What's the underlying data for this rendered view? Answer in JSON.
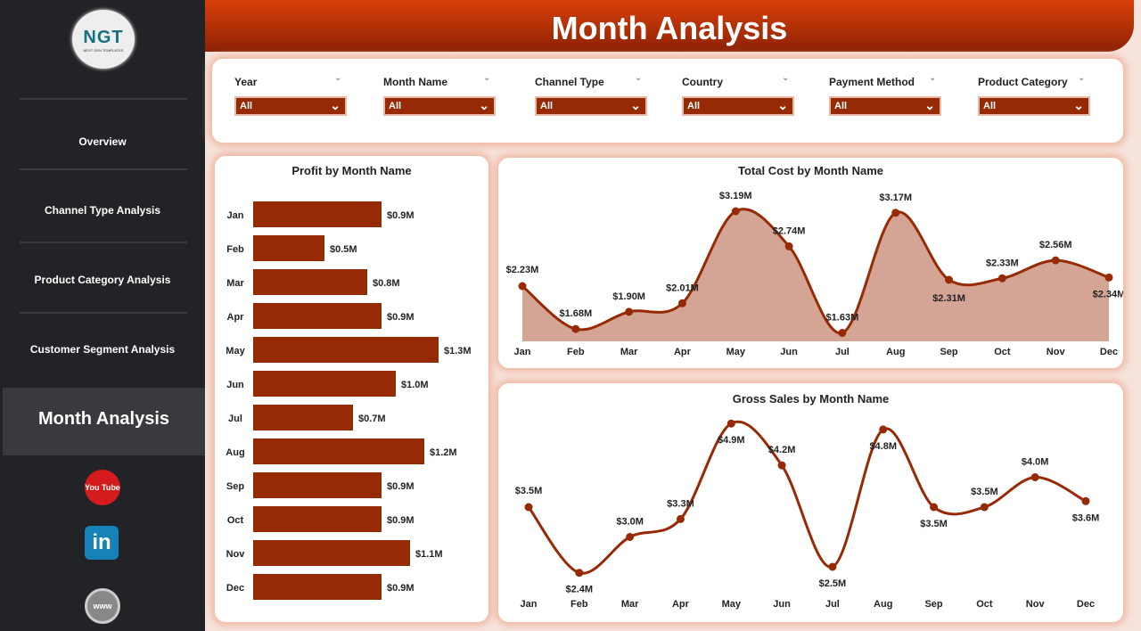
{
  "sidebar": {
    "logo": {
      "text": "NGT",
      "tagline": "NEXT GEN TEMPLATES"
    },
    "items": [
      {
        "label": "Overview"
      },
      {
        "label": "Channel Type Analysis"
      },
      {
        "label": "Product Category Analysis"
      },
      {
        "label": "Customer Segment Analysis"
      }
    ],
    "active": "Month Analysis",
    "social": [
      {
        "icon": "youtube-icon",
        "label": "You Tube"
      },
      {
        "icon": "linkedin-icon",
        "label": "in"
      },
      {
        "icon": "globe-icon",
        "label": "www"
      }
    ]
  },
  "header": {
    "title": "Month Analysis"
  },
  "filters": [
    {
      "label": "Year",
      "value": "All"
    },
    {
      "label": "Month Name",
      "value": "All"
    },
    {
      "label": "Channel Type",
      "value": "All"
    },
    {
      "label": "Country",
      "value": "All"
    },
    {
      "label": "Payment Method",
      "value": "All"
    },
    {
      "label": "Product Category",
      "value": "All"
    }
  ],
  "colors": {
    "accent": "#962a05",
    "fill": "#d4a595",
    "header": "#c8390a"
  },
  "chart_data": [
    {
      "type": "bar",
      "title": "Profit by Month Name",
      "orientation": "horizontal",
      "categories": [
        "Jan",
        "Feb",
        "Mar",
        "Apr",
        "May",
        "Jun",
        "Jul",
        "Aug",
        "Sep",
        "Oct",
        "Nov",
        "Dec"
      ],
      "values": [
        0.9,
        0.5,
        0.8,
        0.9,
        1.3,
        1.0,
        0.7,
        1.2,
        0.9,
        0.9,
        1.1,
        0.9
      ],
      "labels": [
        "$0.9M",
        "$0.5M",
        "$0.8M",
        "$0.9M",
        "$1.3M",
        "$1.0M",
        "$0.7M",
        "$1.2M",
        "$0.9M",
        "$0.9M",
        "$1.1M",
        "$0.9M"
      ]
    },
    {
      "type": "area",
      "title": "Total Cost by Month Name",
      "categories": [
        "Jan",
        "Feb",
        "Mar",
        "Apr",
        "May",
        "Jun",
        "Jul",
        "Aug",
        "Sep",
        "Oct",
        "Nov",
        "Dec"
      ],
      "values": [
        2.23,
        1.68,
        1.9,
        2.01,
        3.19,
        2.74,
        1.63,
        3.17,
        2.31,
        2.33,
        2.56,
        2.34
      ],
      "labels": [
        "$2.23M",
        "$1.68M",
        "$1.90M",
        "$2.01M",
        "$3.19M",
        "$2.74M",
        "$1.63M",
        "$3.17M",
        "$2.31M",
        "$2.33M",
        "$2.56M",
        "$2.34M"
      ]
    },
    {
      "type": "line",
      "title": "Gross Sales by Month Name",
      "categories": [
        "Jan",
        "Feb",
        "Mar",
        "Apr",
        "May",
        "Jun",
        "Jul",
        "Aug",
        "Sep",
        "Oct",
        "Nov",
        "Dec"
      ],
      "values": [
        3.5,
        2.4,
        3.0,
        3.3,
        4.9,
        4.2,
        2.5,
        4.8,
        3.5,
        3.5,
        4.0,
        3.6
      ],
      "labels": [
        "$3.5M",
        "$2.4M",
        "$3.0M",
        "$3.3M",
        "$4.9M",
        "$4.2M",
        "$2.5M",
        "$4.8M",
        "$3.5M",
        "$3.5M",
        "$4.0M",
        "$3.6M"
      ]
    }
  ]
}
